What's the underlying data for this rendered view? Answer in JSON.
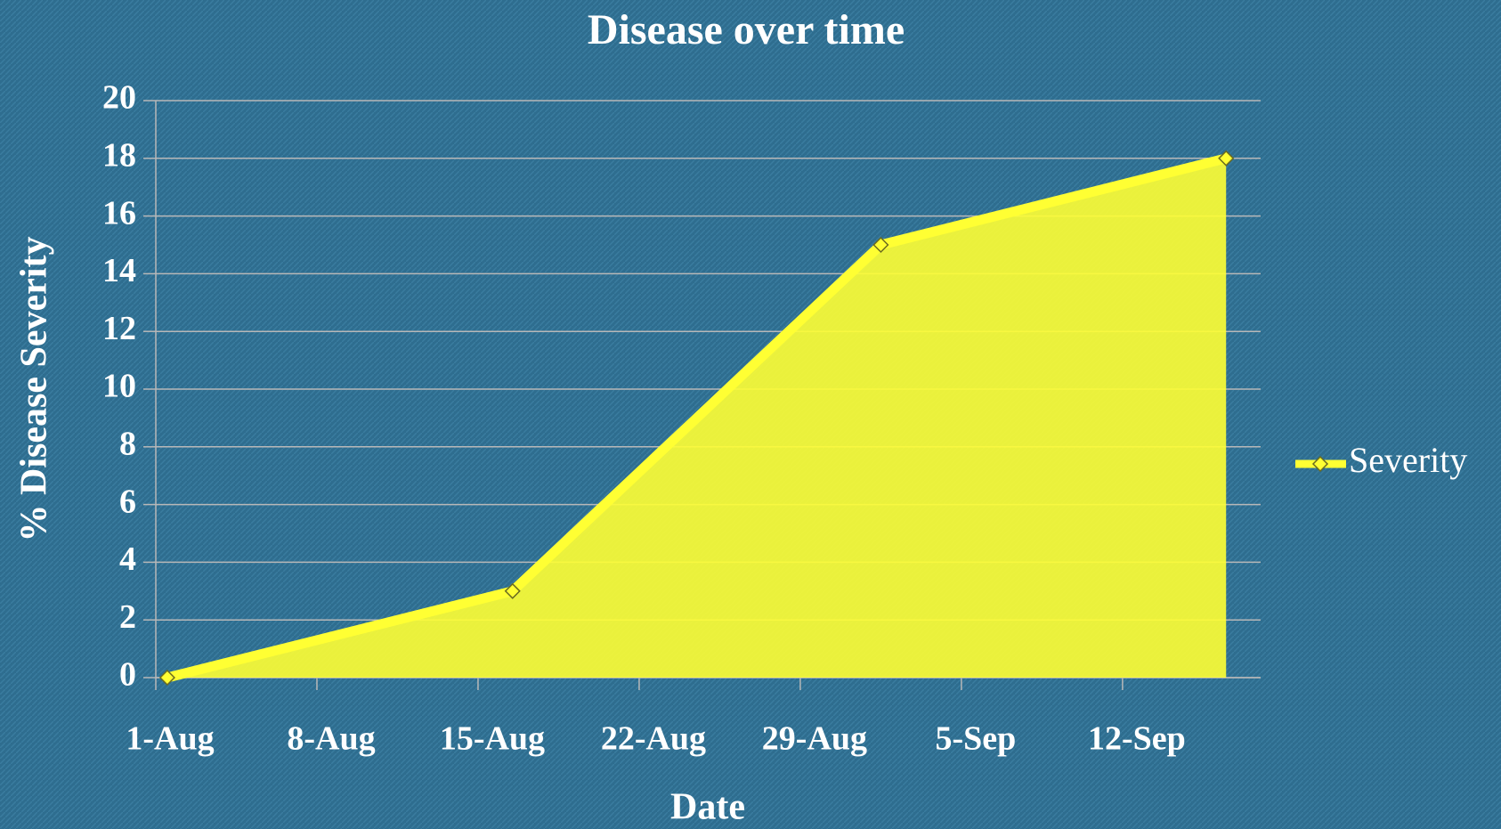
{
  "chart_data": {
    "type": "area",
    "title": "Disease over time",
    "x_label": "Date",
    "y_label": "% Disease Severity",
    "x": [
      "1-Aug",
      "16-Aug",
      "1-Sep",
      "16-Sep"
    ],
    "series": [
      {
        "name": "Severity",
        "color": "#ffff33",
        "values": [
          0,
          3,
          15,
          18
        ]
      }
    ],
    "xlim": [
      "1-Aug",
      "18-Sep"
    ],
    "xticks": [
      "1-Aug",
      "8-Aug",
      "15-Aug",
      "22-Aug",
      "29-Aug",
      "5-Sep",
      "12-Sep"
    ],
    "ylim": [
      0,
      20
    ],
    "yticks": [
      0,
      2,
      4,
      6,
      8,
      10,
      12,
      14,
      16,
      18,
      20
    ],
    "grid": true,
    "legend": "right"
  }
}
